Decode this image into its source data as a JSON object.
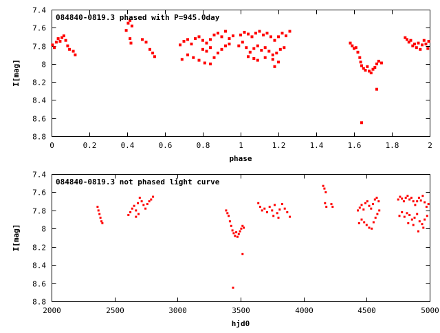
{
  "chart_data": [
    {
      "type": "scatter",
      "title": "084840-0819.3 phased with P=945.0day",
      "xlabel": "phase",
      "ylabel": "I[mag]",
      "xlim": [
        0,
        2
      ],
      "ylim": [
        8.8,
        7.4
      ],
      "y_inverted": true,
      "grid": false,
      "legend": "none",
      "xticks": [
        "0",
        "0.2",
        "0.4",
        "0.6",
        "0.8",
        "1",
        "1.2",
        "1.4",
        "1.6",
        "1.8",
        "2"
      ],
      "yticks": [
        "7.4",
        "7.6",
        "7.8",
        "8",
        "8.2",
        "8.4",
        "8.6",
        "8.8"
      ],
      "marker_color": "#ff0000",
      "points": [
        {
          "x": 0.005,
          "y": 7.79
        },
        {
          "x": 0.015,
          "y": 7.82
        },
        {
          "x": 0.025,
          "y": 7.76
        },
        {
          "x": 0.035,
          "y": 7.72
        },
        {
          "x": 0.045,
          "y": 7.75
        },
        {
          "x": 0.055,
          "y": 7.71
        },
        {
          "x": 0.065,
          "y": 7.69
        },
        {
          "x": 0.075,
          "y": 7.74
        },
        {
          "x": 0.085,
          "y": 7.8
        },
        {
          "x": 0.095,
          "y": 7.84
        },
        {
          "x": 0.115,
          "y": 7.86
        },
        {
          "x": 0.125,
          "y": 7.9
        },
        {
          "x": 0.395,
          "y": 7.63
        },
        {
          "x": 0.405,
          "y": 7.55
        },
        {
          "x": 0.415,
          "y": 7.52
        },
        {
          "x": 0.425,
          "y": 7.58
        },
        {
          "x": 0.415,
          "y": 7.72
        },
        {
          "x": 0.42,
          "y": 7.77
        },
        {
          "x": 0.48,
          "y": 7.73
        },
        {
          "x": 0.5,
          "y": 7.76
        },
        {
          "x": 0.52,
          "y": 7.84
        },
        {
          "x": 0.535,
          "y": 7.88
        },
        {
          "x": 0.545,
          "y": 7.92
        },
        {
          "x": 0.68,
          "y": 7.79
        },
        {
          "x": 0.7,
          "y": 7.75
        },
        {
          "x": 0.72,
          "y": 7.73
        },
        {
          "x": 0.74,
          "y": 7.78
        },
        {
          "x": 0.76,
          "y": 7.72
        },
        {
          "x": 0.78,
          "y": 7.7
        },
        {
          "x": 0.8,
          "y": 7.74
        },
        {
          "x": 0.82,
          "y": 7.77
        },
        {
          "x": 0.84,
          "y": 7.73
        },
        {
          "x": 0.86,
          "y": 7.68
        },
        {
          "x": 0.88,
          "y": 7.66
        },
        {
          "x": 0.9,
          "y": 7.7
        },
        {
          "x": 0.92,
          "y": 7.64
        },
        {
          "x": 0.94,
          "y": 7.72
        },
        {
          "x": 0.96,
          "y": 7.69
        },
        {
          "x": 0.69,
          "y": 7.95
        },
        {
          "x": 0.72,
          "y": 7.9
        },
        {
          "x": 0.75,
          "y": 7.93
        },
        {
          "x": 0.78,
          "y": 7.96
        },
        {
          "x": 0.81,
          "y": 7.99
        },
        {
          "x": 0.84,
          "y": 8.0
        },
        {
          "x": 0.86,
          "y": 7.93
        },
        {
          "x": 0.88,
          "y": 7.88
        },
        {
          "x": 0.9,
          "y": 7.84
        },
        {
          "x": 0.92,
          "y": 7.8
        },
        {
          "x": 0.94,
          "y": 7.78
        },
        {
          "x": 0.8,
          "y": 7.84
        },
        {
          "x": 0.82,
          "y": 7.86
        },
        {
          "x": 0.84,
          "y": 7.82
        },
        {
          "x": 1.0,
          "y": 7.68
        },
        {
          "x": 1.02,
          "y": 7.65
        },
        {
          "x": 1.04,
          "y": 7.67
        },
        {
          "x": 1.06,
          "y": 7.7
        },
        {
          "x": 1.08,
          "y": 7.66
        },
        {
          "x": 1.1,
          "y": 7.64
        },
        {
          "x": 1.12,
          "y": 7.68
        },
        {
          "x": 1.14,
          "y": 7.66
        },
        {
          "x": 1.16,
          "y": 7.7
        },
        {
          "x": 1.18,
          "y": 7.74
        },
        {
          "x": 1.2,
          "y": 7.7
        },
        {
          "x": 1.22,
          "y": 7.66
        },
        {
          "x": 1.24,
          "y": 7.69
        },
        {
          "x": 1.26,
          "y": 7.64
        },
        {
          "x": 0.99,
          "y": 7.8
        },
        {
          "x": 1.01,
          "y": 7.76
        },
        {
          "x": 1.03,
          "y": 7.82
        },
        {
          "x": 1.05,
          "y": 7.87
        },
        {
          "x": 1.07,
          "y": 7.83
        },
        {
          "x": 1.09,
          "y": 7.8
        },
        {
          "x": 1.11,
          "y": 7.85
        },
        {
          "x": 1.13,
          "y": 7.82
        },
        {
          "x": 1.15,
          "y": 7.86
        },
        {
          "x": 1.17,
          "y": 7.9
        },
        {
          "x": 1.19,
          "y": 7.88
        },
        {
          "x": 1.21,
          "y": 7.84
        },
        {
          "x": 1.23,
          "y": 7.82
        },
        {
          "x": 1.04,
          "y": 7.92
        },
        {
          "x": 1.07,
          "y": 7.94
        },
        {
          "x": 1.09,
          "y": 7.96
        },
        {
          "x": 1.13,
          "y": 7.93
        },
        {
          "x": 1.17,
          "y": 7.95
        },
        {
          "x": 1.18,
          "y": 8.03
        },
        {
          "x": 1.2,
          "y": 7.98
        },
        {
          "x": 1.58,
          "y": 7.77
        },
        {
          "x": 1.59,
          "y": 7.8
        },
        {
          "x": 1.6,
          "y": 7.83
        },
        {
          "x": 1.61,
          "y": 7.82
        },
        {
          "x": 1.62,
          "y": 7.87
        },
        {
          "x": 1.63,
          "y": 7.93
        },
        {
          "x": 1.635,
          "y": 7.98
        },
        {
          "x": 1.64,
          "y": 8.02
        },
        {
          "x": 1.65,
          "y": 8.05
        },
        {
          "x": 1.66,
          "y": 8.07
        },
        {
          "x": 1.67,
          "y": 8.03
        },
        {
          "x": 1.68,
          "y": 8.08
        },
        {
          "x": 1.69,
          "y": 8.1
        },
        {
          "x": 1.7,
          "y": 8.06
        },
        {
          "x": 1.71,
          "y": 8.04
        },
        {
          "x": 1.72,
          "y": 8.0
        },
        {
          "x": 1.73,
          "y": 7.97
        },
        {
          "x": 1.745,
          "y": 7.99
        },
        {
          "x": 1.72,
          "y": 8.28
        },
        {
          "x": 1.64,
          "y": 8.65
        },
        {
          "x": 1.87,
          "y": 7.71
        },
        {
          "x": 1.88,
          "y": 7.73
        },
        {
          "x": 1.89,
          "y": 7.76
        },
        {
          "x": 1.9,
          "y": 7.74
        },
        {
          "x": 1.91,
          "y": 7.8
        },
        {
          "x": 1.92,
          "y": 7.78
        },
        {
          "x": 1.93,
          "y": 7.82
        },
        {
          "x": 1.94,
          "y": 7.77
        },
        {
          "x": 1.95,
          "y": 7.84
        },
        {
          "x": 1.96,
          "y": 7.79
        },
        {
          "x": 1.97,
          "y": 7.74
        },
        {
          "x": 1.98,
          "y": 7.78
        },
        {
          "x": 1.99,
          "y": 7.83
        },
        {
          "x": 1.995,
          "y": 7.75
        }
      ]
    },
    {
      "type": "scatter",
      "title": "084840-0819.3 not phased light curve",
      "xlabel": "hjd0",
      "ylabel": "I[mag]",
      "xlim": [
        2000,
        5000
      ],
      "ylim": [
        8.8,
        7.4
      ],
      "y_inverted": true,
      "grid": false,
      "legend": "none",
      "xticks": [
        "2000",
        "2500",
        "3000",
        "3500",
        "4000",
        "4500",
        "5000"
      ],
      "yticks": [
        "7.4",
        "7.6",
        "7.8",
        "8",
        "8.2",
        "8.4",
        "8.6",
        "8.8"
      ],
      "marker_color": "#ff0000",
      "points": [
        {
          "x": 2365,
          "y": 7.76
        },
        {
          "x": 2372,
          "y": 7.8
        },
        {
          "x": 2380,
          "y": 7.84
        },
        {
          "x": 2388,
          "y": 7.88
        },
        {
          "x": 2396,
          "y": 7.92
        },
        {
          "x": 2403,
          "y": 7.94
        },
        {
          "x": 2610,
          "y": 7.85
        },
        {
          "x": 2625,
          "y": 7.82
        },
        {
          "x": 2640,
          "y": 7.78
        },
        {
          "x": 2655,
          "y": 7.75
        },
        {
          "x": 2670,
          "y": 7.8
        },
        {
          "x": 2685,
          "y": 7.72
        },
        {
          "x": 2700,
          "y": 7.66
        },
        {
          "x": 2715,
          "y": 7.7
        },
        {
          "x": 2730,
          "y": 7.74
        },
        {
          "x": 2745,
          "y": 7.78
        },
        {
          "x": 2760,
          "y": 7.73
        },
        {
          "x": 2775,
          "y": 7.7
        },
        {
          "x": 2790,
          "y": 7.68
        },
        {
          "x": 2805,
          "y": 7.65
        },
        {
          "x": 2690,
          "y": 7.84
        },
        {
          "x": 2670,
          "y": 7.87
        },
        {
          "x": 3385,
          "y": 7.8
        },
        {
          "x": 3395,
          "y": 7.83
        },
        {
          "x": 3405,
          "y": 7.86
        },
        {
          "x": 3415,
          "y": 7.92
        },
        {
          "x": 3425,
          "y": 7.97
        },
        {
          "x": 3435,
          "y": 8.02
        },
        {
          "x": 3445,
          "y": 8.05
        },
        {
          "x": 3455,
          "y": 8.08
        },
        {
          "x": 3465,
          "y": 8.04
        },
        {
          "x": 3475,
          "y": 8.09
        },
        {
          "x": 3485,
          "y": 8.06
        },
        {
          "x": 3495,
          "y": 8.03
        },
        {
          "x": 3505,
          "y": 8.0
        },
        {
          "x": 3515,
          "y": 7.97
        },
        {
          "x": 3525,
          "y": 7.99
        },
        {
          "x": 3515,
          "y": 8.28
        },
        {
          "x": 3440,
          "y": 8.65
        },
        {
          "x": 3640,
          "y": 7.72
        },
        {
          "x": 3655,
          "y": 7.76
        },
        {
          "x": 3670,
          "y": 7.8
        },
        {
          "x": 3690,
          "y": 7.78
        },
        {
          "x": 3710,
          "y": 7.82
        },
        {
          "x": 3730,
          "y": 7.76
        },
        {
          "x": 3750,
          "y": 7.8
        },
        {
          "x": 3770,
          "y": 7.74
        },
        {
          "x": 3790,
          "y": 7.83
        },
        {
          "x": 3810,
          "y": 7.79
        },
        {
          "x": 3830,
          "y": 7.73
        },
        {
          "x": 3850,
          "y": 7.78
        },
        {
          "x": 3870,
          "y": 7.82
        },
        {
          "x": 3890,
          "y": 7.87
        },
        {
          "x": 3760,
          "y": 7.86
        },
        {
          "x": 3800,
          "y": 7.88
        },
        {
          "x": 4155,
          "y": 7.53
        },
        {
          "x": 4165,
          "y": 7.56
        },
        {
          "x": 4175,
          "y": 7.6
        },
        {
          "x": 4170,
          "y": 7.72
        },
        {
          "x": 4180,
          "y": 7.76
        },
        {
          "x": 4220,
          "y": 7.73
        },
        {
          "x": 4230,
          "y": 7.76
        },
        {
          "x": 4430,
          "y": 7.8
        },
        {
          "x": 4445,
          "y": 7.77
        },
        {
          "x": 4460,
          "y": 7.74
        },
        {
          "x": 4475,
          "y": 7.79
        },
        {
          "x": 4490,
          "y": 7.72
        },
        {
          "x": 4505,
          "y": 7.7
        },
        {
          "x": 4520,
          "y": 7.75
        },
        {
          "x": 4535,
          "y": 7.78
        },
        {
          "x": 4550,
          "y": 7.73
        },
        {
          "x": 4565,
          "y": 7.68
        },
        {
          "x": 4580,
          "y": 7.66
        },
        {
          "x": 4595,
          "y": 7.7
        },
        {
          "x": 4440,
          "y": 7.94
        },
        {
          "x": 4460,
          "y": 7.9
        },
        {
          "x": 4480,
          "y": 7.93
        },
        {
          "x": 4500,
          "y": 7.96
        },
        {
          "x": 4520,
          "y": 7.99
        },
        {
          "x": 4540,
          "y": 8.0
        },
        {
          "x": 4555,
          "y": 7.93
        },
        {
          "x": 4570,
          "y": 7.88
        },
        {
          "x": 4585,
          "y": 7.84
        },
        {
          "x": 4600,
          "y": 7.8
        },
        {
          "x": 4750,
          "y": 7.68
        },
        {
          "x": 4765,
          "y": 7.65
        },
        {
          "x": 4780,
          "y": 7.67
        },
        {
          "x": 4795,
          "y": 7.7
        },
        {
          "x": 4810,
          "y": 7.66
        },
        {
          "x": 4825,
          "y": 7.64
        },
        {
          "x": 4840,
          "y": 7.68
        },
        {
          "x": 4855,
          "y": 7.66
        },
        {
          "x": 4870,
          "y": 7.7
        },
        {
          "x": 4885,
          "y": 7.74
        },
        {
          "x": 4900,
          "y": 7.7
        },
        {
          "x": 4915,
          "y": 7.66
        },
        {
          "x": 4930,
          "y": 7.69
        },
        {
          "x": 4945,
          "y": 7.64
        },
        {
          "x": 4960,
          "y": 7.71
        },
        {
          "x": 4975,
          "y": 7.76
        },
        {
          "x": 4990,
          "y": 7.73
        },
        {
          "x": 4760,
          "y": 7.86
        },
        {
          "x": 4780,
          "y": 7.82
        },
        {
          "x": 4800,
          "y": 7.87
        },
        {
          "x": 4820,
          "y": 7.83
        },
        {
          "x": 4840,
          "y": 7.85
        },
        {
          "x": 4860,
          "y": 7.9
        },
        {
          "x": 4880,
          "y": 7.88
        },
        {
          "x": 4900,
          "y": 7.84
        },
        {
          "x": 4920,
          "y": 7.92
        },
        {
          "x": 4940,
          "y": 7.95
        },
        {
          "x": 4960,
          "y": 7.9
        },
        {
          "x": 4980,
          "y": 7.86
        },
        {
          "x": 4830,
          "y": 7.94
        },
        {
          "x": 4870,
          "y": 7.96
        },
        {
          "x": 4910,
          "y": 8.03
        },
        {
          "x": 4950,
          "y": 7.99
        }
      ]
    }
  ]
}
